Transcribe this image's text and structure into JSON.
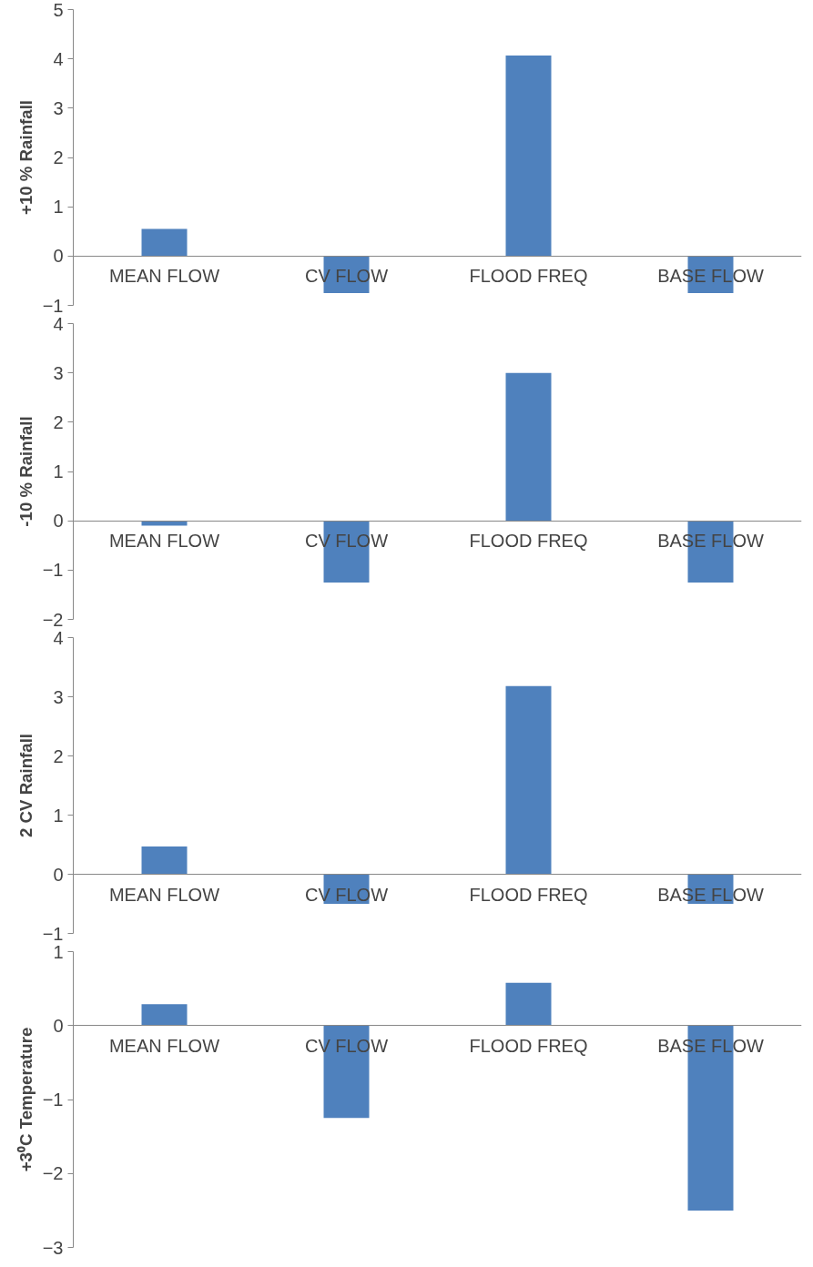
{
  "chart_data": [
    {
      "type": "bar",
      "ylabel": "+10 % Rainfall",
      "categories": [
        "MEAN FLOW",
        "CV FLOW",
        "FLOOD FREQ",
        "BASE FLOW"
      ],
      "values": [
        0.55,
        -0.75,
        4.07,
        -0.75
      ],
      "color": "#4f81bd",
      "ylim": [
        -1,
        5
      ],
      "yticks": [
        -1,
        0,
        1,
        2,
        3,
        4,
        5
      ],
      "grid": false
    },
    {
      "type": "bar",
      "ylabel": "-10 % Rainfall",
      "categories": [
        "MEAN FLOW",
        "CV FLOW",
        "FLOOD FREQ",
        "BASE FLOW"
      ],
      "values": [
        -0.1,
        -1.25,
        3.0,
        -1.25
      ],
      "color": "#4f81bd",
      "ylim": [
        -2,
        4
      ],
      "yticks": [
        -2,
        -1,
        0,
        1,
        2,
        3,
        4
      ],
      "grid": false
    },
    {
      "type": "bar",
      "ylabel": "2 CV Rainfall",
      "categories": [
        "MEAN FLOW",
        "CV FLOW",
        "FLOOD FREQ",
        "BASE FLOW"
      ],
      "values": [
        0.47,
        -0.5,
        3.18,
        -0.5
      ],
      "color": "#4f81bd",
      "ylim": [
        -1,
        4
      ],
      "yticks": [
        -1,
        0,
        1,
        2,
        3,
        4
      ],
      "grid": false
    },
    {
      "type": "bar",
      "ylabel": "+3⁰C Temperature",
      "categories": [
        "MEAN FLOW",
        "CV FLOW",
        "FLOOD FREQ",
        "BASE FLOW"
      ],
      "values": [
        0.29,
        -1.25,
        0.58,
        -2.5
      ],
      "color": "#4f81bd",
      "ylim": [
        -3,
        1
      ],
      "yticks": [
        -3,
        -2,
        -1,
        0,
        1
      ],
      "grid": false
    }
  ]
}
